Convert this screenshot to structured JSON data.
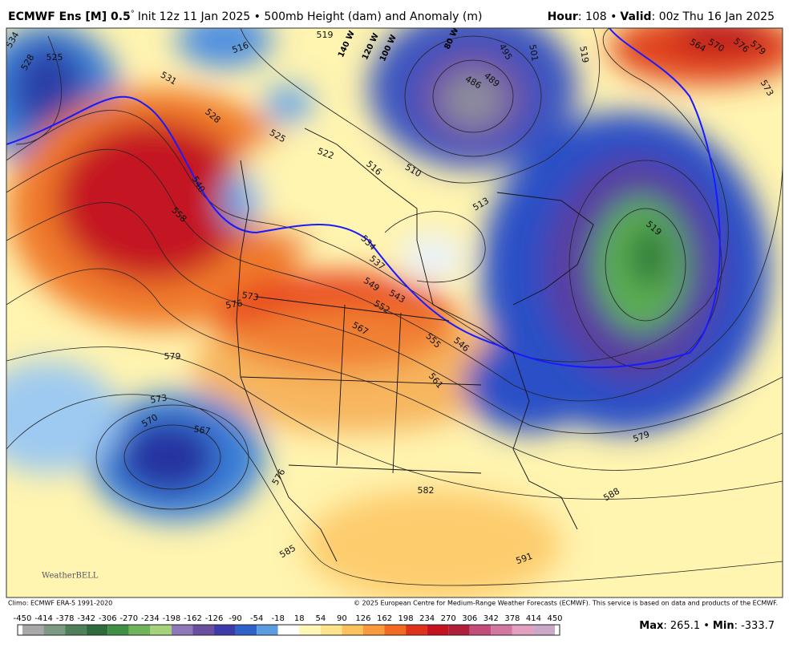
{
  "header": {
    "model": "ECMWF Ens [M] 0.5",
    "degree": "°",
    "init": "Init 12z 11 Jan 2025 • 500mb Height (dam) and Anomaly (m)",
    "hour_label": "Hour",
    "hour": ": 108 •",
    "valid_label": "Valid",
    "valid": ": 00z Thu 16 Jan 2025"
  },
  "map": {
    "contour_labels": [
      "534",
      "528",
      "525",
      "531",
      "528",
      "516",
      "519",
      "495",
      "501",
      "489",
      "486",
      "519",
      "525",
      "522",
      "516",
      "510",
      "513",
      "540",
      "558",
      "534",
      "537",
      "549",
      "543",
      "552",
      "567",
      "573",
      "576",
      "579",
      "555",
      "546",
      "561",
      "573",
      "570",
      "567",
      "576",
      "582",
      "585",
      "591",
      "588",
      "579",
      "519",
      "564",
      "570",
      "576",
      "579",
      "573"
    ],
    "longitude_labels": [
      "140 W",
      "120 W",
      "100 W",
      "80 W"
    ],
    "logo": "WeatherBELL"
  },
  "footer": {
    "climo": "Climo: ECMWF ERA-5 1991-2020",
    "copyright": "© 2025 European Centre for Medium-Range Weather Forecasts (ECMWF). This service is based on data and products of the ECMWF.",
    "max_label": "Max",
    "max": ": 265.1 •",
    "min_label": "Min",
    "min": ": -333.7"
  },
  "colorbar": {
    "ticks": [
      -450,
      -414,
      -378,
      -342,
      -306,
      -270,
      -234,
      -198,
      -162,
      -126,
      -90,
      -54,
      -18,
      18,
      54,
      90,
      126,
      162,
      198,
      234,
      270,
      306,
      342,
      378,
      414,
      450
    ],
    "colors": [
      "#a8a8a8",
      "#7f9a84",
      "#4f7f58",
      "#2e6a3c",
      "#3f8f47",
      "#6fb35a",
      "#a5d27a",
      "#8f78b8",
      "#6a4fa0",
      "#3b3aa8",
      "#2f62c8",
      "#5b9be0",
      "#ffffff",
      "#fff7b8",
      "#fde48a",
      "#fcc25d",
      "#f99a3d",
      "#f26a22",
      "#e0321a",
      "#c4121e",
      "#b01f3a",
      "#c24d78",
      "#d277a0",
      "#e2a0c0",
      "#c9a8c8"
    ]
  }
}
